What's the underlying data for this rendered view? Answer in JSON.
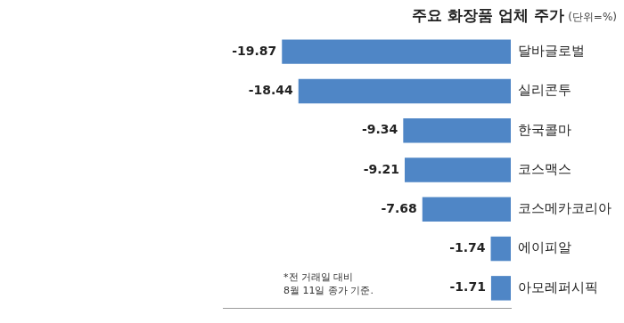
{
  "chart_data": {
    "type": "bar",
    "orientation": "horizontal",
    "title": "주요 화장품 업체 주가",
    "subtitle": "(단위=%)",
    "annotations": [
      "*전 거래일 대비",
      "8월 11일 종가 기준."
    ],
    "categories": [
      "달바글로벌",
      "실리콘투",
      "한국콜마",
      "코스맥스",
      "코스메카코리아",
      "에이피알",
      "아모레퍼시픽"
    ],
    "values": [
      -19.87,
      -18.44,
      -9.34,
      -9.21,
      -7.68,
      -1.74,
      -1.71
    ],
    "color": "#4f86c6",
    "xlim": [
      -25,
      0
    ],
    "grid": false,
    "data_labels": true,
    "tick_labels": "y"
  }
}
